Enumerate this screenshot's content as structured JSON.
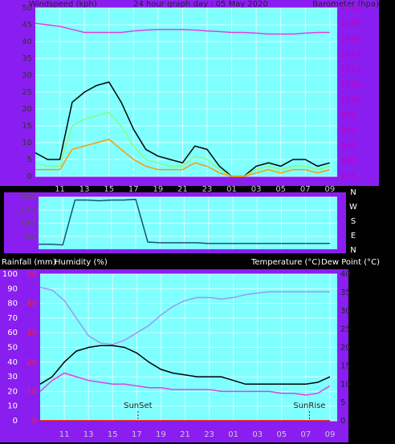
{
  "chart_data": [
    {
      "type": "line",
      "title": "24 hour graph day : 05 May 2020",
      "ylabel": "Windspeed (kph)",
      "y2label": "Barometer (hpa)",
      "x": [
        0,
        1,
        2,
        3,
        4,
        5,
        6,
        7,
        8,
        9,
        10,
        11,
        12,
        13,
        14,
        15,
        16,
        17,
        18,
        19,
        20,
        21,
        22,
        23,
        24
      ],
      "xlim": [
        0,
        24.6
      ],
      "xticks": [
        {
          "value": 2,
          "label": "11"
        },
        {
          "value": 4,
          "label": "13"
        },
        {
          "value": 6,
          "label": "15"
        },
        {
          "value": 8,
          "label": "17"
        },
        {
          "value": 10,
          "label": "19"
        },
        {
          "value": 12,
          "label": "21"
        },
        {
          "value": 14,
          "label": "23"
        },
        {
          "value": 16,
          "label": "01"
        },
        {
          "value": 18,
          "label": "03"
        },
        {
          "value": 20,
          "label": "05"
        },
        {
          "value": 22,
          "label": "07"
        },
        {
          "value": 24,
          "label": "09"
        }
      ],
      "ylim": [
        0,
        50
      ],
      "yticks": [
        0,
        5,
        10,
        15,
        20,
        25,
        30,
        35,
        40,
        45,
        50
      ],
      "y2lim": [
        975,
        1030
      ],
      "y2ticks": [
        975,
        980,
        985,
        990,
        995,
        1000,
        1005,
        1010,
        1015,
        1020,
        1025,
        1030
      ],
      "grid": true,
      "series": [
        {
          "color": "#000000",
          "values": [
            7,
            5,
            5,
            22,
            25,
            27,
            28,
            22,
            14,
            8,
            6,
            5,
            4,
            9,
            8,
            3,
            0,
            0,
            3,
            4,
            3,
            5,
            5,
            3,
            4
          ]
        },
        {
          "color": "#80ff80",
          "values": [
            4,
            3,
            3,
            15,
            17,
            18,
            19,
            15,
            9,
            5,
            4,
            3,
            3,
            6,
            5,
            2,
            0,
            0,
            2,
            3,
            2,
            3,
            3,
            2,
            3
          ]
        },
        {
          "color": "#ff9900",
          "values": [
            2,
            2,
            2,
            8,
            9,
            10,
            11,
            8,
            5,
            3,
            2,
            2,
            2,
            4,
            3,
            1,
            0,
            0,
            1,
            2,
            1,
            2,
            2,
            1,
            2
          ]
        },
        {
          "color": "#e040e0",
          "axis": "y2",
          "values": [
            1025,
            1024.5,
            1024,
            1023,
            1022,
            1022,
            1022,
            1022,
            1022.5,
            1022.8,
            1023,
            1023,
            1023,
            1022.8,
            1022.5,
            1022.3,
            1022,
            1022,
            1021.8,
            1021.5,
            1021.5,
            1021.5,
            1021.8,
            1022,
            1022
          ]
        }
      ]
    },
    {
      "type": "line",
      "x": [
        0,
        1,
        2,
        3,
        4,
        5,
        6,
        7,
        8,
        9,
        10,
        11,
        12,
        13,
        14,
        15,
        16,
        17,
        18,
        19,
        20,
        21,
        22,
        23,
        24
      ],
      "xlim": [
        0,
        24.6
      ],
      "ylim": [
        0,
        360
      ],
      "yticks": [
        90,
        180,
        270,
        360
      ],
      "y2lim": [
        0,
        360
      ],
      "y2ticks": [
        {
          "value": 360,
          "label": "N"
        },
        {
          "value": 270,
          "label": "W"
        },
        {
          "value": 180,
          "label": "S"
        },
        {
          "value": 90,
          "label": "E"
        },
        {
          "value": 0,
          "label": "N"
        }
      ],
      "grid": true,
      "series": [
        {
          "color": "#1a5276",
          "values": [
            35,
            35,
            30,
            340,
            340,
            335,
            340,
            340,
            345,
            50,
            45,
            45,
            45,
            45,
            40,
            40,
            40,
            40,
            40,
            40,
            40,
            40,
            40,
            40,
            40
          ]
        }
      ]
    },
    {
      "type": "line",
      "ylabel": "Humidity (%)",
      "y3label": "Rainfall (mm)",
      "y2labels": [
        "Temperature (°C)",
        "Dew Point (°C)"
      ],
      "x": [
        0,
        1,
        2,
        3,
        4,
        5,
        6,
        7,
        8,
        9,
        10,
        11,
        12,
        13,
        14,
        15,
        16,
        17,
        18,
        19,
        20,
        21,
        22,
        23,
        24
      ],
      "xlim": [
        0,
        24.6
      ],
      "xticks": [
        {
          "value": 2,
          "label": "11"
        },
        {
          "value": 4,
          "label": "13"
        },
        {
          "value": 6,
          "label": "15"
        },
        {
          "value": 8,
          "label": "17"
        },
        {
          "value": 10,
          "label": "19"
        },
        {
          "value": 12,
          "label": "21"
        },
        {
          "value": 14,
          "label": "23"
        },
        {
          "value": 16,
          "label": "01"
        },
        {
          "value": 18,
          "label": "03"
        },
        {
          "value": 20,
          "label": "05"
        },
        {
          "value": 22,
          "label": "07"
        },
        {
          "value": 24,
          "label": "09"
        }
      ],
      "ylim": [
        0,
        100
      ],
      "yticks": [
        0,
        10,
        20,
        30,
        40,
        50,
        60,
        70,
        80,
        90,
        100
      ],
      "y3lim": [
        0,
        50
      ],
      "y3ticks": [
        0,
        10,
        20,
        30,
        40,
        50
      ],
      "y2lim": [
        0,
        40
      ],
      "y2ticks": [
        0,
        5,
        10,
        15,
        20,
        25,
        30,
        35,
        40
      ],
      "grid": true,
      "annotations": [
        {
          "text": "SunSet",
          "x": 8.1
        },
        {
          "text": "SunRise",
          "x": 22.3
        }
      ],
      "series": [
        {
          "color": "#9a9af0",
          "values": [
            91,
            89,
            82,
            70,
            58,
            53,
            52,
            55,
            60,
            65,
            72,
            78,
            82,
            84,
            84,
            83,
            84,
            86,
            87,
            88,
            88,
            88,
            88,
            88,
            88
          ]
        },
        {
          "color": "#000000",
          "axis": "y2",
          "values": [
            10,
            12,
            16,
            19,
            20,
            20.5,
            20.5,
            20,
            18.5,
            16,
            14,
            13,
            12.5,
            12,
            12,
            12,
            11,
            10,
            10,
            10,
            10,
            10,
            10,
            10.5,
            12
          ]
        },
        {
          "color": "#e040e0",
          "axis": "y2",
          "values": [
            8,
            11,
            13,
            12,
            11,
            10.5,
            10,
            10,
            9.5,
            9,
            9,
            8.5,
            8.5,
            8.5,
            8.5,
            8,
            8,
            8,
            8,
            8,
            7.5,
            7.5,
            7,
            7.5,
            9.5
          ]
        },
        {
          "color": "#ff0000",
          "axis": "y3",
          "values": [
            0,
            0,
            0,
            0,
            0,
            0,
            0,
            0,
            0,
            0,
            0,
            0,
            0,
            0,
            0,
            0,
            0,
            0,
            0,
            0,
            0,
            0,
            0,
            0,
            0
          ]
        }
      ]
    }
  ]
}
